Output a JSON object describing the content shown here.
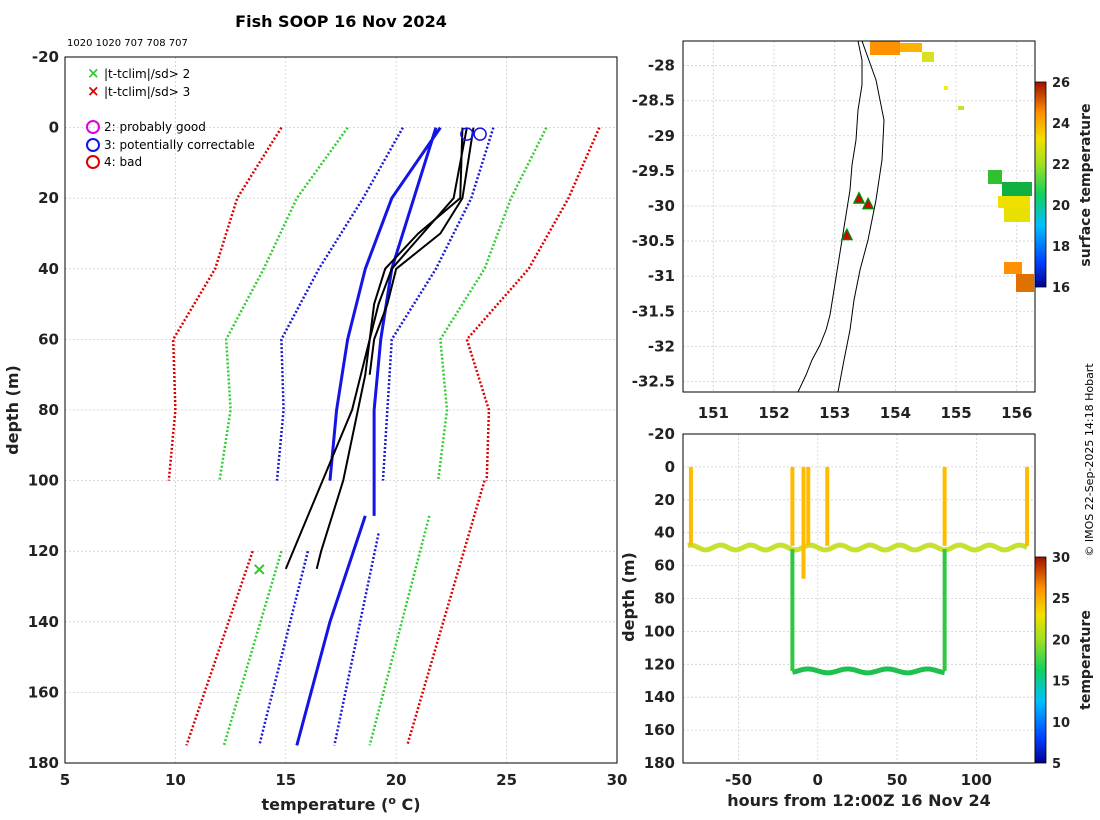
{
  "title": "Fish SOOP 16 Nov 2024",
  "subtitle_ids": "1020 1020 707 708 707",
  "credit": "© IMOS 22-Sep-2025 14:18 Hobart",
  "colors": {
    "climo_3sd": "#dd0000",
    "climo_2sd": "#33cc33",
    "climo_1sd": "#1a1ad6",
    "profile_black": "#000000",
    "profile_blue": "#1414e6",
    "coast": "#000000"
  },
  "legend": {
    "x2": "|t-tclim|/sd> 2",
    "x3": "|t-tclim|/sd> 3",
    "q2": "2: probably good",
    "q3": "3: potentially correctable",
    "q4": "4: bad"
  },
  "chart_data": [
    {
      "id": "profiles",
      "type": "line",
      "title": "Fish SOOP 16 Nov 2024",
      "xlabel": "temperature (ᵒ C)",
      "ylabel": "depth (m)",
      "xlim": [
        5,
        30
      ],
      "ylim": [
        180,
        -20
      ],
      "xticks": [
        5,
        10,
        15,
        20,
        25,
        30
      ],
      "yticks": [
        -20,
        0,
        20,
        40,
        60,
        80,
        100,
        120,
        140,
        160,
        180
      ],
      "climatology": [
        {
          "name": "clim-3sd-left",
          "color": "red",
          "depth": [
            0,
            20,
            40,
            60,
            80,
            100
          ],
          "temp": [
            14.8,
            12.8,
            11.8,
            9.9,
            10.0,
            9.7
          ]
        },
        {
          "name": "clim-2sd-left",
          "color": "green",
          "depth": [
            0,
            20,
            40,
            60,
            80,
            100
          ],
          "temp": [
            17.8,
            15.5,
            14.0,
            12.3,
            12.5,
            12.0
          ]
        },
        {
          "name": "clim-1sd-left",
          "color": "blue",
          "depth": [
            0,
            20,
            40,
            60,
            80,
            100
          ],
          "temp": [
            20.3,
            18.5,
            16.5,
            14.8,
            14.9,
            14.6
          ]
        },
        {
          "name": "clim-1sd-right",
          "color": "blue",
          "depth": [
            0,
            20,
            40,
            60,
            80,
            100
          ],
          "temp": [
            24.4,
            23.4,
            21.8,
            19.8,
            19.6,
            19.4
          ]
        },
        {
          "name": "clim-2sd-right",
          "color": "green",
          "depth": [
            0,
            20,
            40,
            60,
            80,
            100
          ],
          "temp": [
            26.8,
            25.2,
            24.0,
            22.0,
            22.3,
            21.9
          ]
        },
        {
          "name": "clim-3sd-right",
          "color": "red",
          "depth": [
            0,
            20,
            40,
            60,
            80,
            100
          ],
          "temp": [
            29.2,
            27.8,
            26.0,
            23.2,
            24.2,
            24.1
          ]
        },
        {
          "name": "clim-3sd-left-deep",
          "color": "red",
          "depth": [
            120,
            175
          ],
          "temp": [
            13.5,
            10.5
          ]
        },
        {
          "name": "clim-2sd-left-deep",
          "color": "green",
          "depth": [
            120,
            175
          ],
          "temp": [
            14.8,
            12.2
          ]
        },
        {
          "name": "clim-1sd-left-deep",
          "color": "blue",
          "depth": [
            120,
            175
          ],
          "temp": [
            16.0,
            13.8
          ]
        },
        {
          "name": "clim-1sd-right-deep",
          "color": "blue",
          "depth": [
            115,
            175
          ],
          "temp": [
            19.2,
            17.2
          ]
        },
        {
          "name": "clim-2sd-right-deep",
          "color": "green",
          "depth": [
            110,
            175
          ],
          "temp": [
            21.5,
            18.8
          ]
        },
        {
          "name": "clim-3sd-right-deep",
          "color": "red",
          "depth": [
            100,
            175
          ],
          "temp": [
            24.0,
            20.5
          ]
        }
      ],
      "profiles": [
        {
          "name": "blue-profile-1",
          "color": "blue",
          "depth": [
            0,
            20,
            40,
            60,
            80,
            100
          ],
          "temp": [
            22.0,
            19.8,
            18.6,
            17.8,
            17.3,
            17.0
          ]
        },
        {
          "name": "blue-profile-2",
          "color": "blue",
          "depth": [
            0,
            20,
            40,
            60,
            80,
            110
          ],
          "temp": [
            21.8,
            20.8,
            19.8,
            19.3,
            19.0,
            19.0
          ]
        },
        {
          "name": "blue-profile-3",
          "color": "blue",
          "depth": [
            110,
            140,
            175
          ],
          "temp": [
            18.6,
            17.0,
            15.5
          ]
        },
        {
          "name": "black-profile-1",
          "color": "black",
          "depth": [
            0,
            20,
            30,
            40,
            50,
            70,
            100,
            120,
            125
          ],
          "temp": [
            23.0,
            22.9,
            21.0,
            19.5,
            19.0,
            18.6,
            17.6,
            16.6,
            16.4
          ]
        },
        {
          "name": "black-profile-2",
          "color": "black",
          "depth": [
            0,
            20,
            30,
            40,
            50,
            60,
            70
          ],
          "temp": [
            23.5,
            23.0,
            22.0,
            20.0,
            19.6,
            19.0,
            18.8
          ]
        },
        {
          "name": "black-profile-3",
          "color": "black",
          "depth": [
            0,
            20,
            30,
            40,
            50,
            80,
            110,
            125
          ],
          "temp": [
            23.2,
            22.6,
            21.2,
            19.8,
            19.2,
            18.0,
            16.0,
            15.0
          ]
        }
      ],
      "flag_x2": [
        {
          "temp": 13.8,
          "depth": 125
        }
      ],
      "flag_q3": [
        {
          "temp": 23.2,
          "depth": 1
        },
        {
          "temp": 23.8,
          "depth": 1
        }
      ]
    },
    {
      "id": "sst-map",
      "type": "heatmap",
      "xlim": [
        150.5,
        156.3
      ],
      "ylim": [
        -32.65,
        -27.65
      ],
      "xticks": [
        151,
        152,
        153,
        154,
        155,
        156
      ],
      "yticks": [
        -28,
        -28.5,
        -29,
        -29.5,
        -30,
        -30.5,
        -31,
        -31.5,
        -32,
        -32.5
      ],
      "colorbar_label": "surface temperature",
      "colorbar_range": [
        16,
        26
      ],
      "colorbar_ticks": [
        16,
        18,
        20,
        22,
        24,
        26
      ],
      "stations": [
        {
          "lon": 153.4,
          "lat": -29.9
        },
        {
          "lon": 153.55,
          "lat": -29.98
        },
        {
          "lon": 153.2,
          "lat": -30.42
        }
      ]
    },
    {
      "id": "time-depth",
      "type": "scatter",
      "xlabel": "hours from 12:00Z 16 Nov 24",
      "ylabel": "depth (m)",
      "xlim": [
        -85,
        137
      ],
      "ylim": [
        180,
        -20
      ],
      "xticks": [
        -50,
        0,
        50,
        100
      ],
      "yticks": [
        -20,
        0,
        20,
        40,
        60,
        80,
        100,
        120,
        140,
        160,
        180
      ],
      "colorbar_label": "temperature",
      "colorbar_range": [
        5,
        30
      ],
      "colorbar_ticks": [
        5,
        10,
        15,
        20,
        25,
        30
      ]
    }
  ]
}
